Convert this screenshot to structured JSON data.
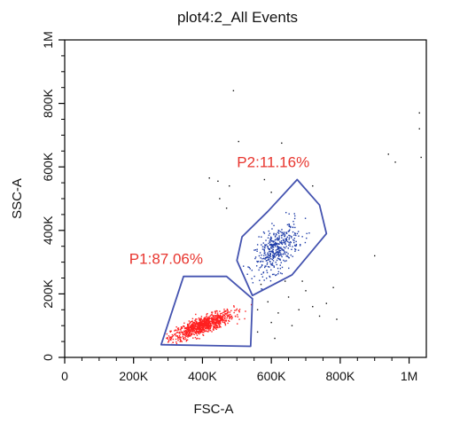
{
  "chart_data": {
    "type": "scatter",
    "title": "plot4:2_All Events",
    "xlabel": "FSC-A",
    "ylabel": "SSC-A",
    "xlim": [
      0,
      1050000
    ],
    "ylim": [
      0,
      1000000
    ],
    "x_ticks": [
      {
        "value": 0,
        "label": "0"
      },
      {
        "value": 200000,
        "label": "200K"
      },
      {
        "value": 400000,
        "label": "400K"
      },
      {
        "value": 600000,
        "label": "600K"
      },
      {
        "value": 800000,
        "label": "800K"
      },
      {
        "value": 1000000,
        "label": "1M"
      }
    ],
    "y_ticks": [
      {
        "value": 0,
        "label": "0"
      },
      {
        "value": 200000,
        "label": "200K"
      },
      {
        "value": 400000,
        "label": "400K"
      },
      {
        "value": 600000,
        "label": "600K"
      },
      {
        "value": 800000,
        "label": "800K"
      },
      {
        "value": 1000000,
        "label": "1M"
      }
    ],
    "gates": [
      {
        "name": "P1",
        "label": "P1:87.06%",
        "percent": 87.06,
        "color": "#ff2020",
        "gate_color": "#4453b0",
        "polygon": [
          [
            280000,
            40000
          ],
          [
            345000,
            255000
          ],
          [
            470000,
            255000
          ],
          [
            545000,
            185000
          ],
          [
            540000,
            35000
          ]
        ],
        "cluster": {
          "center": [
            400000,
            100000
          ],
          "spread": [
            45000,
            22000
          ],
          "corr": 0.8,
          "n": 900
        }
      },
      {
        "name": "P2",
        "label": "P2:11.16%",
        "percent": 11.16,
        "color": "#1f3da8",
        "gate_color": "#4453b0",
        "polygon": [
          [
            500000,
            305000
          ],
          [
            515000,
            380000
          ],
          [
            590000,
            460000
          ],
          [
            675000,
            560000
          ],
          [
            740000,
            480000
          ],
          [
            760000,
            390000
          ],
          [
            660000,
            260000
          ],
          [
            545000,
            195000
          ]
        ],
        "cluster": {
          "center": [
            615000,
            340000
          ],
          "spread": [
            32000,
            40000
          ],
          "corr": 0.55,
          "n": 420
        }
      }
    ],
    "ungated_color": "#111111",
    "ungated_points": [
      [
        490000,
        840000
      ],
      [
        505000,
        680000
      ],
      [
        630000,
        675000
      ],
      [
        940000,
        640000
      ],
      [
        960000,
        615000
      ],
      [
        1030000,
        770000
      ],
      [
        1030000,
        720000
      ],
      [
        1035000,
        630000
      ],
      [
        420000,
        565000
      ],
      [
        445000,
        555000
      ],
      [
        478000,
        540000
      ],
      [
        580000,
        560000
      ],
      [
        600000,
        520000
      ],
      [
        720000,
        540000
      ],
      [
        450000,
        500000
      ],
      [
        470000,
        470000
      ],
      [
        900000,
        320000
      ],
      [
        590000,
        175000
      ],
      [
        620000,
        140000
      ],
      [
        650000,
        190000
      ],
      [
        700000,
        210000
      ],
      [
        740000,
        130000
      ],
      [
        780000,
        220000
      ],
      [
        560000,
        150000
      ],
      [
        600000,
        110000
      ],
      [
        660000,
        100000
      ],
      [
        680000,
        150000
      ],
      [
        720000,
        160000
      ],
      [
        760000,
        170000
      ],
      [
        790000,
        120000
      ],
      [
        640000,
        240000
      ],
      [
        570000,
        230000
      ],
      [
        560000,
        80000
      ],
      [
        610000,
        60000
      ],
      [
        690000,
        240000
      ]
    ]
  }
}
